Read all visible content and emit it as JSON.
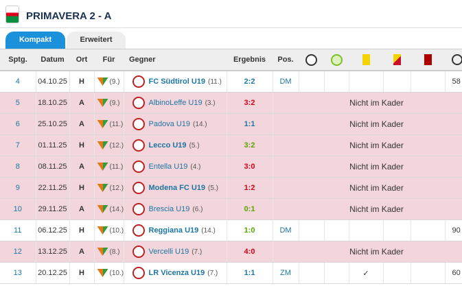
{
  "header": {
    "title": "PRIMAVERA 2 - A"
  },
  "tabs": [
    "Kompakt",
    "Erweitert"
  ],
  "table": {
    "columns": [
      "Sptg.",
      "Datum",
      "Ort",
      "Für",
      "Gegner",
      "Ergebnis",
      "Pos."
    ],
    "rows": [
      {
        "matchday": "4",
        "date": "04.10.25",
        "venue": "H",
        "team_rank": "(9.)",
        "opponent": "FC Südtirol U19",
        "opponent_rank": "(11.)",
        "result": "2:2",
        "result_color": "#1d75a3",
        "position": "DM",
        "minutes": "58"
      },
      {
        "matchday": "5",
        "date": "18.10.25",
        "venue": "A",
        "team_rank": "(9.)",
        "opponent": "AlbinoLeffe U19",
        "opponent_rank": "(3.)",
        "result": "3:2",
        "result_color": "#d0021b",
        "note": "Nicht im Kader"
      },
      {
        "matchday": "6",
        "date": "25.10.25",
        "venue": "A",
        "team_rank": "(11.)",
        "opponent": "Padova U19",
        "opponent_rank": "(14.)",
        "result": "1:1",
        "result_color": "#1d75a3",
        "note": "Nicht im Kader"
      },
      {
        "matchday": "7",
        "date": "01.11.25",
        "venue": "H",
        "team_rank": "(12.)",
        "opponent": "Lecco U19",
        "opponent_rank": "(5.)",
        "result": "3:2",
        "result_color": "#5ba100",
        "note": "Nicht im Kader"
      },
      {
        "matchday": "8",
        "date": "08.11.25",
        "venue": "A",
        "team_rank": "(11.)",
        "opponent": "Entella U19",
        "opponent_rank": "(4.)",
        "result": "3:0",
        "result_color": "#d0021b",
        "note": "Nicht im Kader"
      },
      {
        "matchday": "9",
        "date": "22.11.25",
        "venue": "H",
        "team_rank": "(12.)",
        "opponent": "Modena FC U19",
        "opponent_rank": "(5.)",
        "result": "1:2",
        "result_color": "#d0021b",
        "note": "Nicht im Kader"
      },
      {
        "matchday": "10",
        "date": "29.11.25",
        "venue": "A",
        "team_rank": "(14.)",
        "opponent": "Brescia U19",
        "opponent_rank": "(6.)",
        "result": "0:1",
        "result_color": "#5ba100",
        "note": "Nicht im Kader"
      },
      {
        "matchday": "11",
        "date": "06.12.25",
        "venue": "H",
        "team_rank": "(10.)",
        "opponent": "Reggiana U19",
        "opponent_rank": "(14.)",
        "result": "1:0",
        "result_color": "#5ba100",
        "position": "DM",
        "minutes": "90"
      },
      {
        "matchday": "12",
        "date": "13.12.25",
        "venue": "A",
        "team_rank": "(8.)",
        "opponent": "Vercelli U19",
        "opponent_rank": "(7.)",
        "result": "4:0",
        "result_color": "#d0021b",
        "note": "Nicht im Kader"
      },
      {
        "matchday": "13",
        "date": "20.12.25",
        "venue": "H",
        "team_rank": "(10.)",
        "opponent": "LR Vicenza U19",
        "opponent_rank": "(7.)",
        "result": "1:1",
        "result_color": "#1d75a3",
        "position": "ZM",
        "yellow": "✓",
        "minutes": "60"
      }
    ]
  }
}
